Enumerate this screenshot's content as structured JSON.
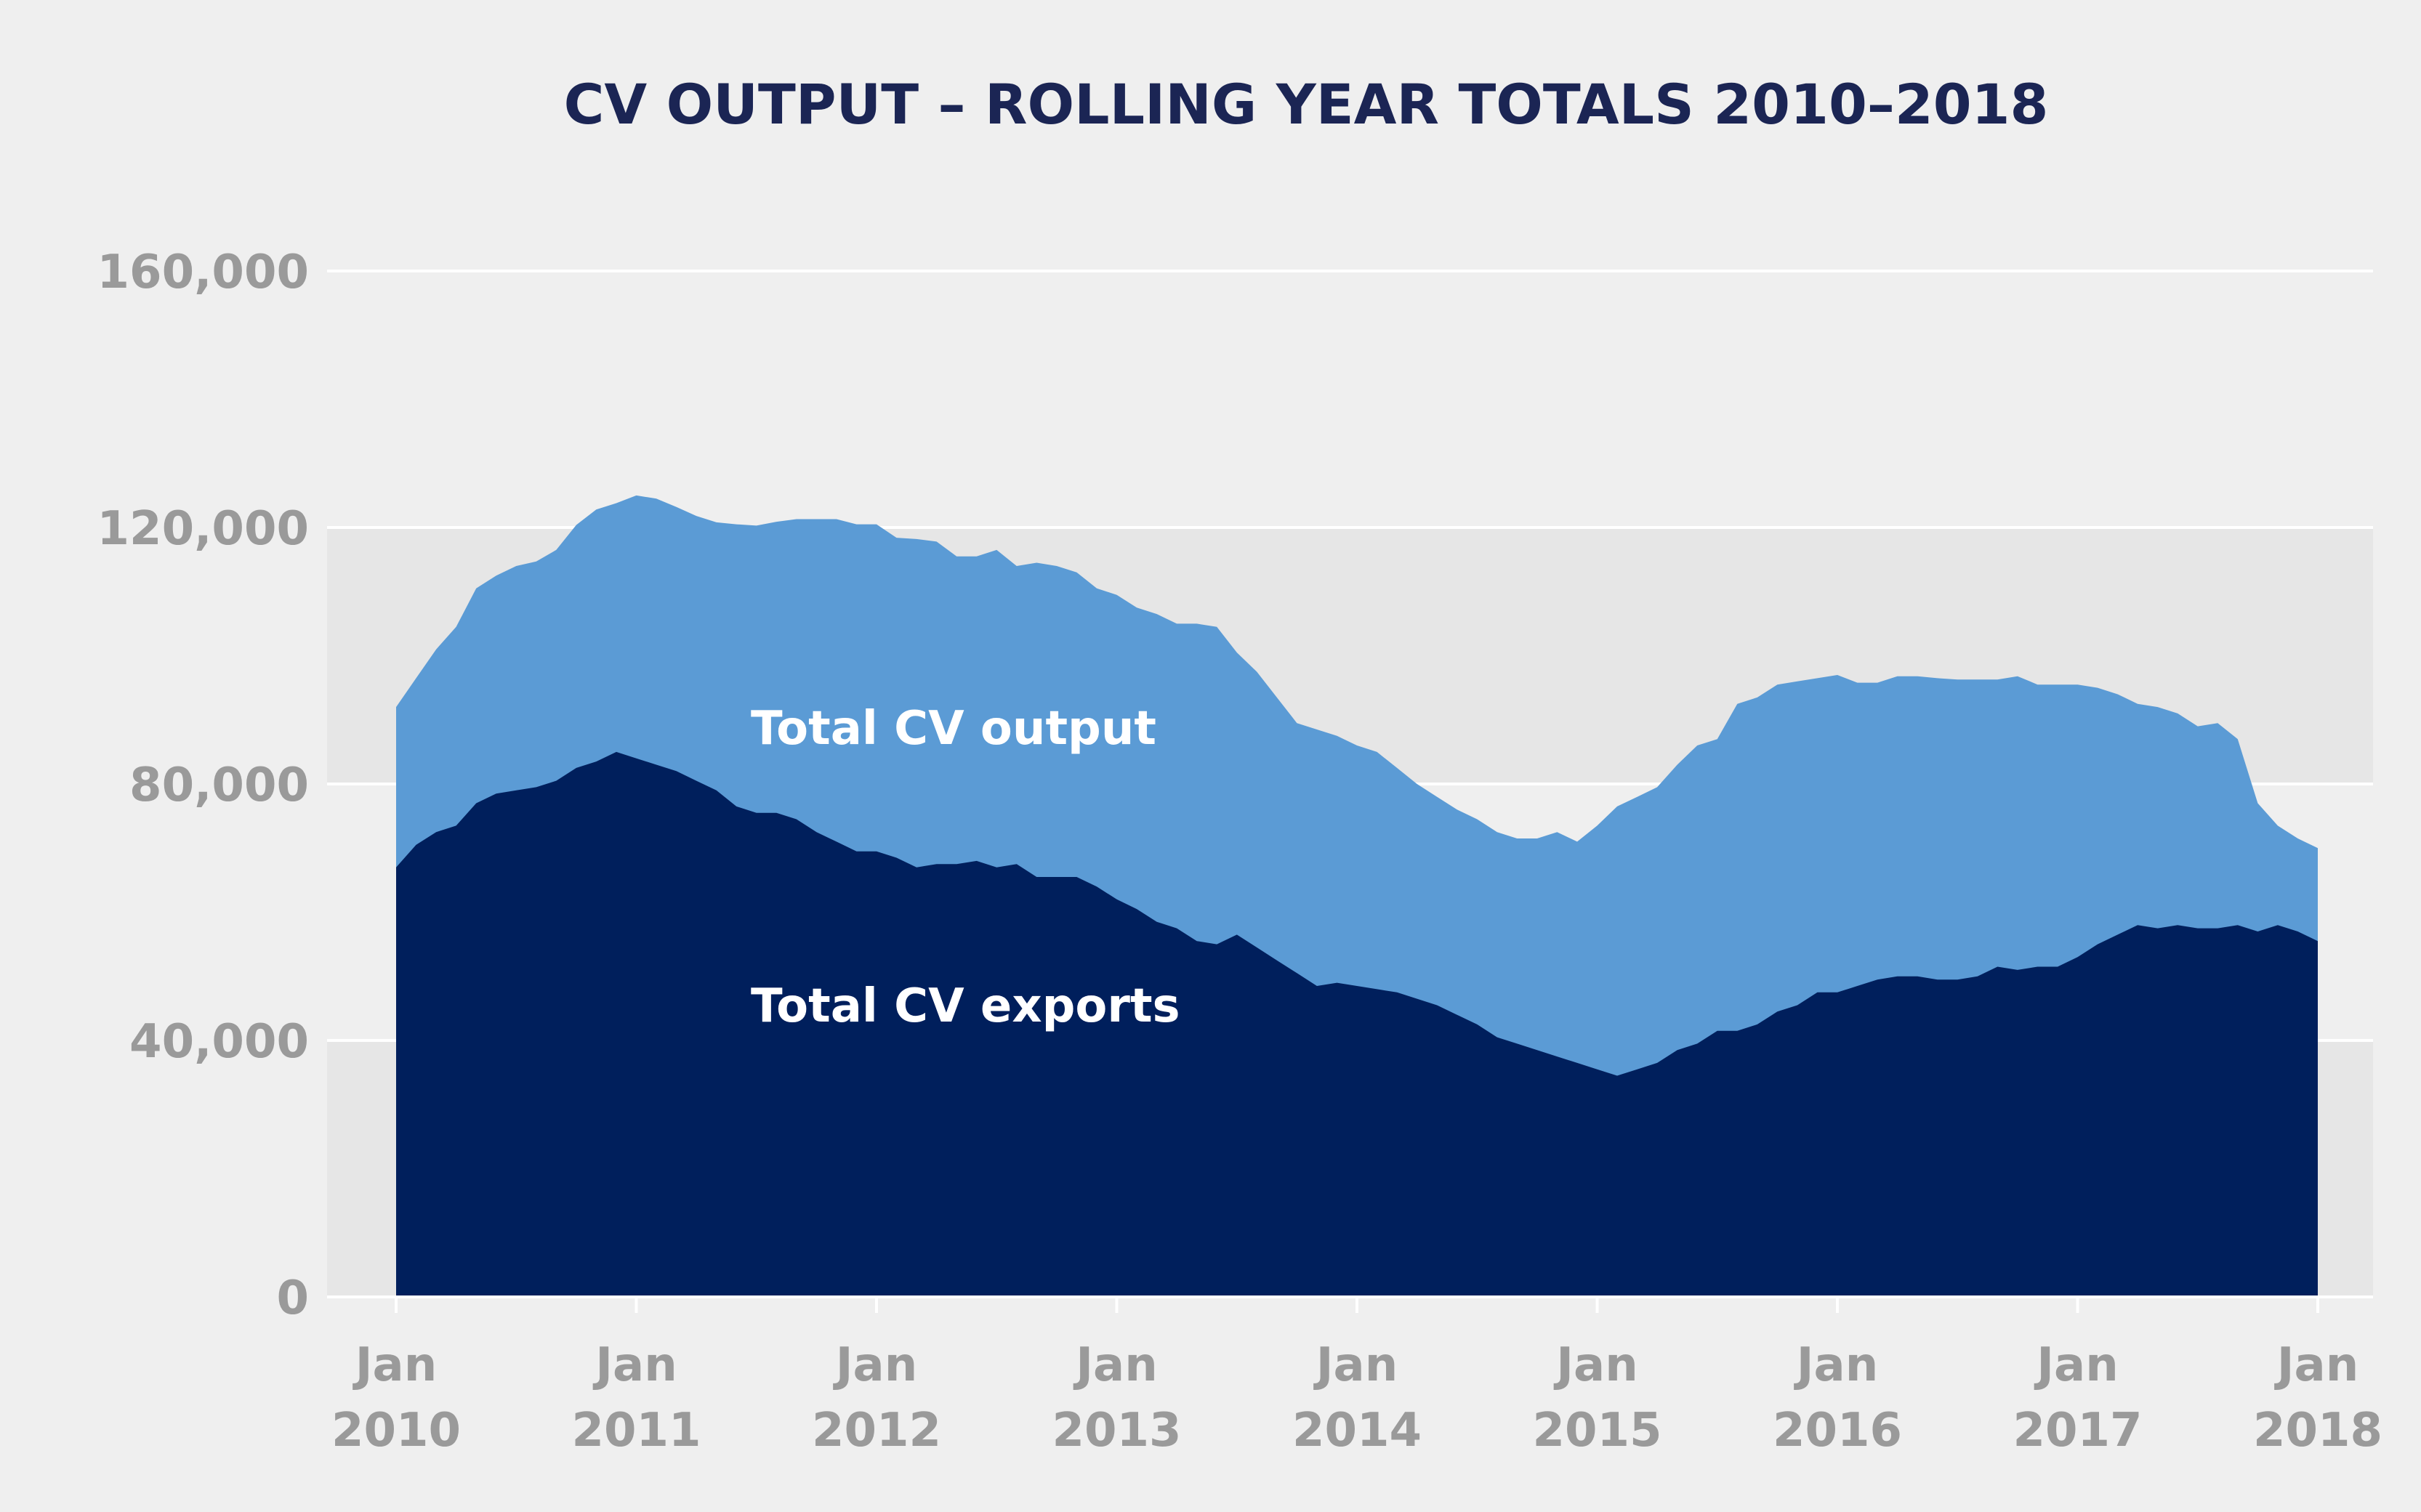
{
  "chart_data": {
    "type": "area",
    "title": "CV OUTPUT – ROLLING YEAR TOTALS 2010–2018",
    "xlabel": "",
    "ylabel": "",
    "x_start": "2010-01",
    "x_end": "2018-01",
    "ylim": [
      0,
      160000
    ],
    "y_ticks": [
      {
        "value": 0,
        "label": "0"
      },
      {
        "value": 40000,
        "label": "40,000"
      },
      {
        "value": 80000,
        "label": "80,000"
      },
      {
        "value": 120000,
        "label": "120,000"
      },
      {
        "value": 160000,
        "label": "160,000"
      }
    ],
    "x_ticks": [
      {
        "month": "Jan",
        "year": "2010"
      },
      {
        "month": "Jan",
        "year": "2011"
      },
      {
        "month": "Jan",
        "year": "2012"
      },
      {
        "month": "Jan",
        "year": "2013"
      },
      {
        "month": "Jan",
        "year": "2014"
      },
      {
        "month": "Jan",
        "year": "2015"
      },
      {
        "month": "Jan",
        "year": "2016"
      },
      {
        "month": "Jan",
        "year": "2017"
      },
      {
        "month": "Jan",
        "year": "2018"
      }
    ],
    "grid": true,
    "legend": "inline labels",
    "band_color": "#e6e6e6",
    "series": [
      {
        "name": "Total CV output",
        "color": "#5b9bd5",
        "values": [
          92000,
          96500,
          101000,
          104500,
          110500,
          112500,
          114000,
          114700,
          116500,
          120400,
          122800,
          123800,
          125000,
          124500,
          123200,
          121800,
          120800,
          120500,
          120300,
          120900,
          121300,
          121300,
          121300,
          120500,
          120500,
          118400,
          118200,
          117800,
          115500,
          115500,
          116500,
          114000,
          114500,
          114000,
          113000,
          110500,
          109500,
          107500,
          106500,
          105000,
          105000,
          104500,
          100500,
          97500,
          93500,
          89500,
          88500,
          87500,
          86000,
          85000,
          82500,
          80000,
          78000,
          76000,
          74500,
          72500,
          71500,
          71500,
          72500,
          71000,
          73500,
          76500,
          78000,
          79500,
          83000,
          86000,
          87000,
          92500,
          93500,
          95500,
          96000,
          96500,
          97000,
          95800,
          95800,
          96800,
          96800,
          96500,
          96300,
          96300,
          96300,
          96800,
          95500,
          95500,
          95500,
          95000,
          94000,
          92500,
          92000,
          91000,
          89000,
          89500,
          87000,
          77000,
          73500,
          71500,
          70000
        ]
      },
      {
        "name": "Total CV exports",
        "color": "#001f5c",
        "values": [
          67000,
          70500,
          72500,
          73500,
          77000,
          78500,
          79000,
          79500,
          80500,
          82500,
          83500,
          85000,
          84000,
          83000,
          82000,
          80500,
          79000,
          76500,
          75500,
          75500,
          74500,
          72500,
          71000,
          69500,
          69500,
          68500,
          67000,
          67500,
          67500,
          68000,
          67000,
          67500,
          65500,
          65500,
          65500,
          64000,
          62000,
          60500,
          58500,
          57500,
          55500,
          55000,
          56500,
          54500,
          52500,
          50500,
          48500,
          49000,
          48500,
          48000,
          47500,
          46500,
          45500,
          44000,
          42500,
          40500,
          39500,
          38500,
          37500,
          36500,
          35500,
          34500,
          35500,
          36500,
          38500,
          39500,
          41500,
          41500,
          42500,
          44500,
          45500,
          47500,
          47500,
          48500,
          49500,
          50000,
          50000,
          49500,
          49500,
          50000,
          51500,
          51000,
          51500,
          51500,
          53000,
          55000,
          56500,
          58000,
          57500,
          58000,
          57500,
          57500,
          58000,
          57000,
          58000,
          57000,
          55500
        ]
      }
    ]
  }
}
